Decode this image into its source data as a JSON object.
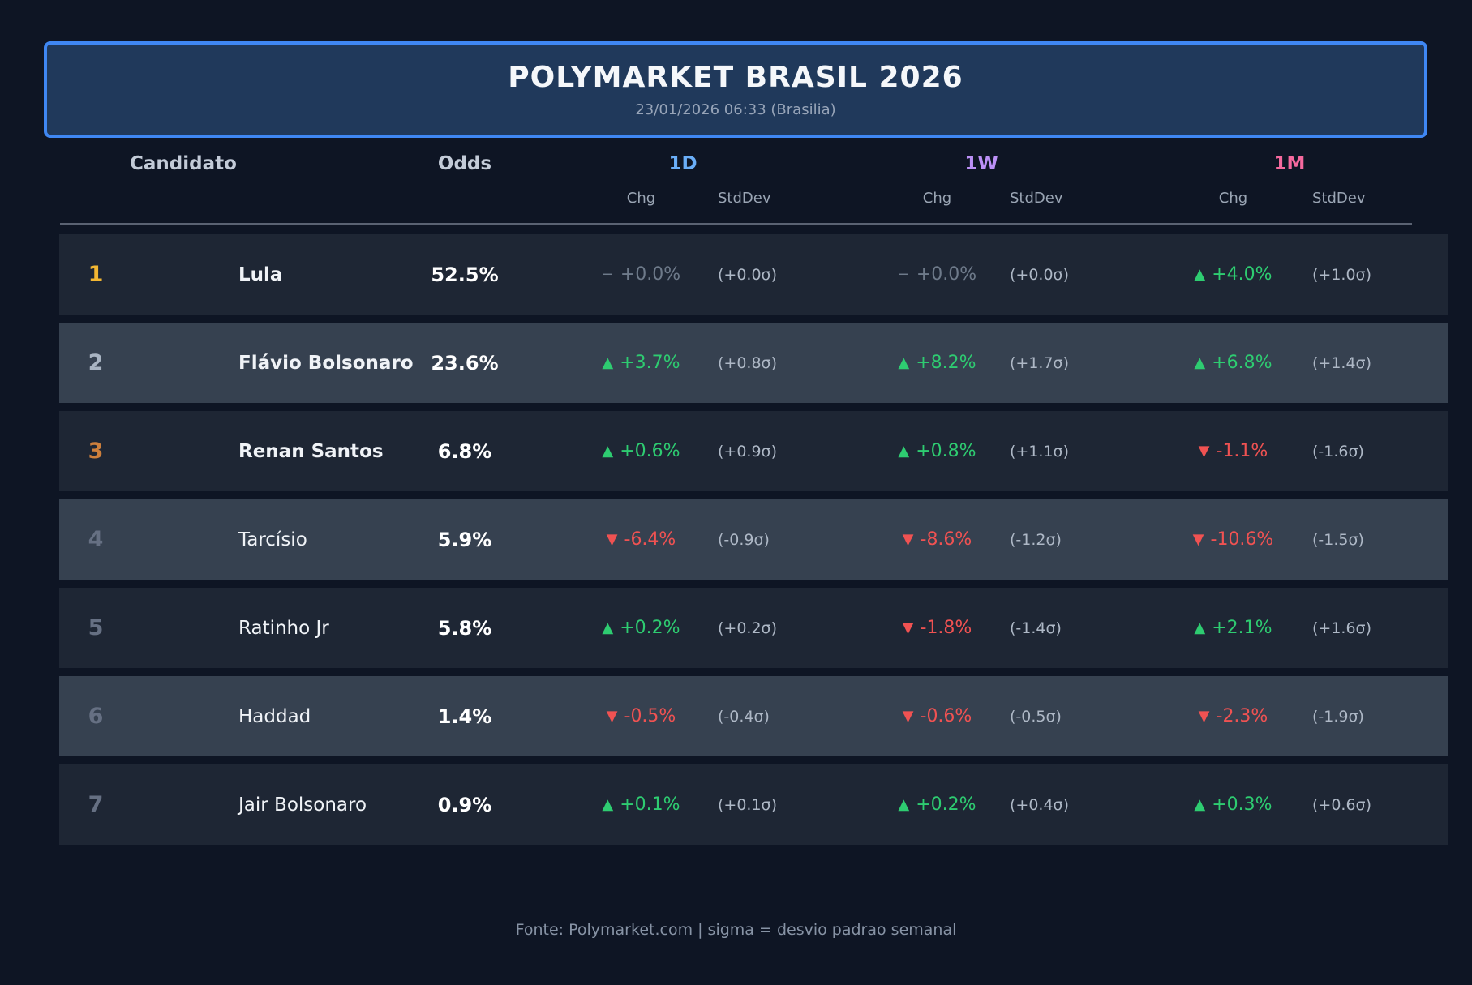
{
  "header": {
    "title": "POLYMARKET BRASIL 2026",
    "subtitle": "23/01/2026 06:33 (Brasilia)"
  },
  "table": {
    "col_candidato": "Candidato",
    "col_odds": "Odds",
    "sub_chg": "Chg",
    "sub_std": "StdDev",
    "groups": [
      {
        "label": "1D",
        "color": "#6aaef8"
      },
      {
        "label": "1W",
        "color": "#bb90f6"
      },
      {
        "label": "1M",
        "color": "#f5699e"
      }
    ],
    "rows": [
      {
        "rank": "1",
        "rank_color": "#f2b632",
        "name": "Lula",
        "odds": "52.5%",
        "cells": [
          {
            "arrow": "−",
            "chg": "+0.0%",
            "color": "#6e7a8a",
            "std": "(+0.0σ)"
          },
          {
            "arrow": "−",
            "chg": "+0.0%",
            "color": "#6e7a8a",
            "std": "(+0.0σ)"
          },
          {
            "arrow": "▲",
            "chg": "+4.0%",
            "color": "#2ecc71",
            "std": "(+1.0σ)"
          }
        ]
      },
      {
        "rank": "2",
        "rank_color": "#a9b4c2",
        "name": "Flávio Bolsonaro",
        "odds": "23.6%",
        "cells": [
          {
            "arrow": "▲",
            "chg": "+3.7%",
            "color": "#2ecc71",
            "std": "(+0.8σ)"
          },
          {
            "arrow": "▲",
            "chg": "+8.2%",
            "color": "#2ecc71",
            "std": "(+1.7σ)"
          },
          {
            "arrow": "▲",
            "chg": "+6.8%",
            "color": "#2ecc71",
            "std": "(+1.4σ)"
          }
        ]
      },
      {
        "rank": "3",
        "rank_color": "#cd7f3c",
        "name": "Renan Santos",
        "odds": "6.8%",
        "cells": [
          {
            "arrow": "▲",
            "chg": "+0.6%",
            "color": "#2ecc71",
            "std": "(+0.9σ)"
          },
          {
            "arrow": "▲",
            "chg": "+0.8%",
            "color": "#2ecc71",
            "std": "(+1.1σ)"
          },
          {
            "arrow": "▼",
            "chg": "-1.1%",
            "color": "#f05252",
            "std": "(-1.6σ)"
          }
        ]
      },
      {
        "rank": "4",
        "rank_color": "#667083",
        "name": "Tarcísio",
        "odds": "5.9%",
        "cells": [
          {
            "arrow": "▼",
            "chg": "-6.4%",
            "color": "#f05252",
            "std": "(-0.9σ)"
          },
          {
            "arrow": "▼",
            "chg": "-8.6%",
            "color": "#f05252",
            "std": "(-1.2σ)"
          },
          {
            "arrow": "▼",
            "chg": "-10.6%",
            "color": "#f05252",
            "std": "(-1.5σ)"
          }
        ]
      },
      {
        "rank": "5",
        "rank_color": "#667083",
        "name": "Ratinho Jr",
        "odds": "5.8%",
        "cells": [
          {
            "arrow": "▲",
            "chg": "+0.2%",
            "color": "#2ecc71",
            "std": "(+0.2σ)"
          },
          {
            "arrow": "▼",
            "chg": "-1.8%",
            "color": "#f05252",
            "std": "(-1.4σ)"
          },
          {
            "arrow": "▲",
            "chg": "+2.1%",
            "color": "#2ecc71",
            "std": "(+1.6σ)"
          }
        ]
      },
      {
        "rank": "6",
        "rank_color": "#667083",
        "name": "Haddad",
        "odds": "1.4%",
        "cells": [
          {
            "arrow": "▼",
            "chg": "-0.5%",
            "color": "#f05252",
            "std": "(-0.4σ)"
          },
          {
            "arrow": "▼",
            "chg": "-0.6%",
            "color": "#f05252",
            "std": "(-0.5σ)"
          },
          {
            "arrow": "▼",
            "chg": "-2.3%",
            "color": "#f05252",
            "std": "(-1.9σ)"
          }
        ]
      },
      {
        "rank": "7",
        "rank_color": "#667083",
        "name": "Jair Bolsonaro",
        "odds": "0.9%",
        "cells": [
          {
            "arrow": "▲",
            "chg": "+0.1%",
            "color": "#2ecc71",
            "std": "(+0.1σ)"
          },
          {
            "arrow": "▲",
            "chg": "+0.2%",
            "color": "#2ecc71",
            "std": "(+0.4σ)"
          },
          {
            "arrow": "▲",
            "chg": "+0.3%",
            "color": "#2ecc71",
            "std": "(+0.6σ)"
          }
        ]
      }
    ]
  },
  "footer": {
    "source": "Fonte: Polymarket.com | sigma = desvio padrao semanal"
  },
  "chart_data": {
    "type": "table",
    "title": "POLYMARKET BRASIL 2026",
    "timestamp": "23/01/2026 06:33 (Brasilia)",
    "columns": [
      "Candidato",
      "Odds %",
      "1D Chg %",
      "1D StdDev σ",
      "1W Chg %",
      "1W StdDev σ",
      "1M Chg %",
      "1M StdDev σ"
    ],
    "rows": [
      [
        "Lula",
        52.5,
        0.0,
        0.0,
        0.0,
        0.0,
        4.0,
        1.0
      ],
      [
        "Flávio Bolsonaro",
        23.6,
        3.7,
        0.8,
        8.2,
        1.7,
        6.8,
        1.4
      ],
      [
        "Renan Santos",
        6.8,
        0.6,
        0.9,
        0.8,
        1.1,
        -1.1,
        -1.6
      ],
      [
        "Tarcísio",
        5.9,
        -6.4,
        -0.9,
        -8.6,
        -1.2,
        -10.6,
        -1.5
      ],
      [
        "Ratinho Jr",
        5.8,
        0.2,
        0.2,
        -1.8,
        -1.4,
        2.1,
        1.6
      ],
      [
        "Haddad",
        1.4,
        -0.5,
        -0.4,
        -0.6,
        -0.5,
        -2.3,
        -1.9
      ],
      [
        "Jair Bolsonaro",
        0.9,
        0.1,
        0.1,
        0.2,
        0.4,
        0.3,
        0.6
      ]
    ],
    "source": "Fonte: Polymarket.com | sigma = desvio padrao semanal"
  },
  "colors": {
    "page_bg": "#0e1524",
    "header_bg": "#20395b",
    "header_border": "#3f87f3",
    "row_dark": "#1e2634",
    "row_light": "#364150",
    "up": "#2ecc71",
    "down": "#f05252",
    "flat": "#6e7a8a",
    "gold": "#f2b632",
    "silver": "#a9b4c2",
    "bronze": "#cd7f3c"
  }
}
